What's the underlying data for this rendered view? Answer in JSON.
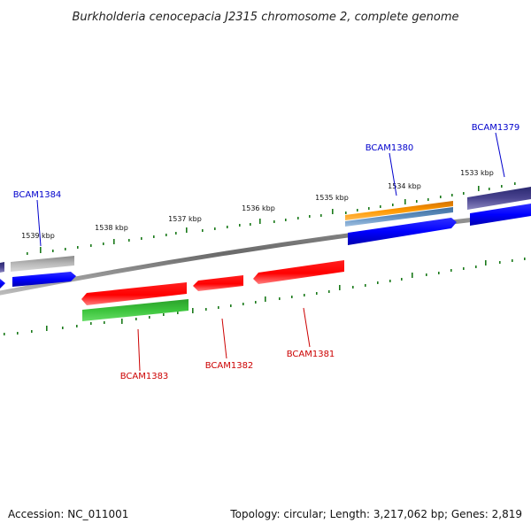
{
  "title": "Burkholderia cenocepacia J2315 chromosome 2, complete genome",
  "footer": {
    "accession": "Accession: NC_011001",
    "topology": "Topology: circular; Length: 3,217,062 bp; Genes: 2,819"
  },
  "ticks": [
    "1539 kbp",
    "1538 kbp",
    "1537 kbp",
    "1536 kbp",
    "1535 kbp",
    "1534 kbp",
    "1533 kbp"
  ],
  "genes": [
    {
      "name": "BCAM1384",
      "strand": "forward"
    },
    {
      "name": "BCAM1380",
      "strand": "forward"
    },
    {
      "name": "BCAM1379",
      "strand": "forward"
    },
    {
      "name": "BCAM1383",
      "strand": "reverse"
    },
    {
      "name": "BCAM1382",
      "strand": "reverse"
    },
    {
      "name": "BCAM1381",
      "strand": "reverse"
    }
  ],
  "colors": {
    "backbone": "#808080",
    "tick_marks": "#1a7a1a",
    "forward_cds": "#0000ff",
    "reverse_cds": "#ff0000",
    "forward_label": "#0000cc",
    "reverse_label": "#cc0000",
    "grey_feature": "#b8b8b8",
    "orange_feature": "#ff9900",
    "steel_feature": "#5f8fc0",
    "purple_feature": "#4a4490",
    "green_feature": "#33bb33"
  }
}
